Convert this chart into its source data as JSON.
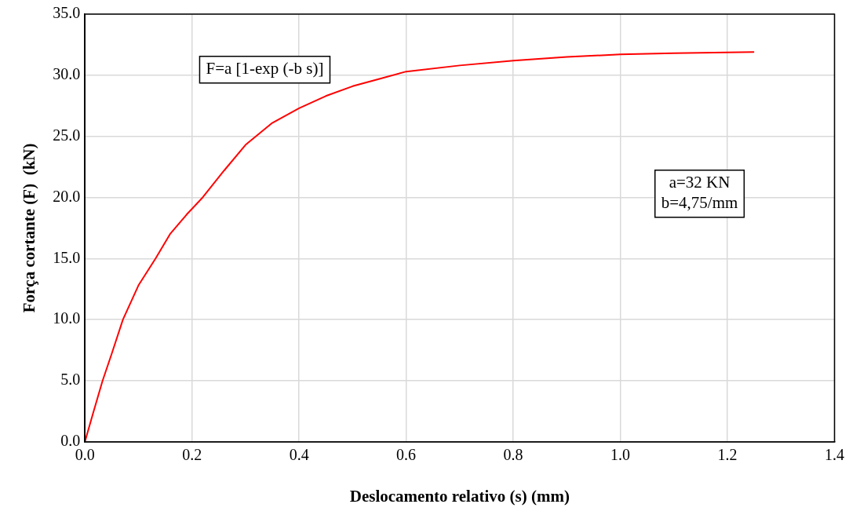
{
  "chart_data": {
    "type": "line",
    "xlabel": "Deslocamento relativo (s) (mm)",
    "ylabel": "Força cortante (F)  (kN)",
    "x": [
      0,
      0.015,
      0.033,
      0.05,
      0.071,
      0.1,
      0.132,
      0.159,
      0.19,
      0.22,
      0.26,
      0.3,
      0.35,
      0.4,
      0.45,
      0.5,
      0.55,
      0.6,
      0.7,
      0.8,
      0.9,
      1.0,
      1.1,
      1.25
    ],
    "series": [
      {
        "color": "#ff0000",
        "values": [
          0,
          2.3,
          5,
          7.2,
          10,
          12.8,
          15,
          17,
          18.6,
          20,
          22.2,
          24.3,
          26.1,
          27.3,
          28.3,
          29.1,
          29.7,
          30.3,
          30.8,
          31.2,
          31.5,
          31.7,
          31.8,
          31.9
        ]
      }
    ],
    "xlim": [
      0,
      1.4
    ],
    "xticks": [
      {
        "value": 0,
        "label": "0.0"
      },
      0.2,
      0.4,
      0.6,
      0.8,
      {
        "value": 1,
        "label": "1.0"
      },
      1.2,
      1.4
    ],
    "ylim": [
      0,
      35
    ],
    "yticks": [
      {
        "value": 0,
        "label": "0.0"
      },
      {
        "value": 5,
        "label": "5.0"
      },
      {
        "value": 10,
        "label": "10.0"
      },
      {
        "value": 15,
        "label": "15.0"
      },
      {
        "value": 20,
        "label": "20.0"
      },
      {
        "value": 25,
        "label": "25.0"
      },
      {
        "value": 30,
        "label": "30.0"
      },
      {
        "value": 35,
        "label": "35.0"
      }
    ],
    "annotations": [
      "F=a [1-exp (-b s)]",
      "a=32 KN\nb=4,75/mm"
    ],
    "grid": true,
    "legend": false,
    "marker": "none",
    "line_style": "solid"
  }
}
